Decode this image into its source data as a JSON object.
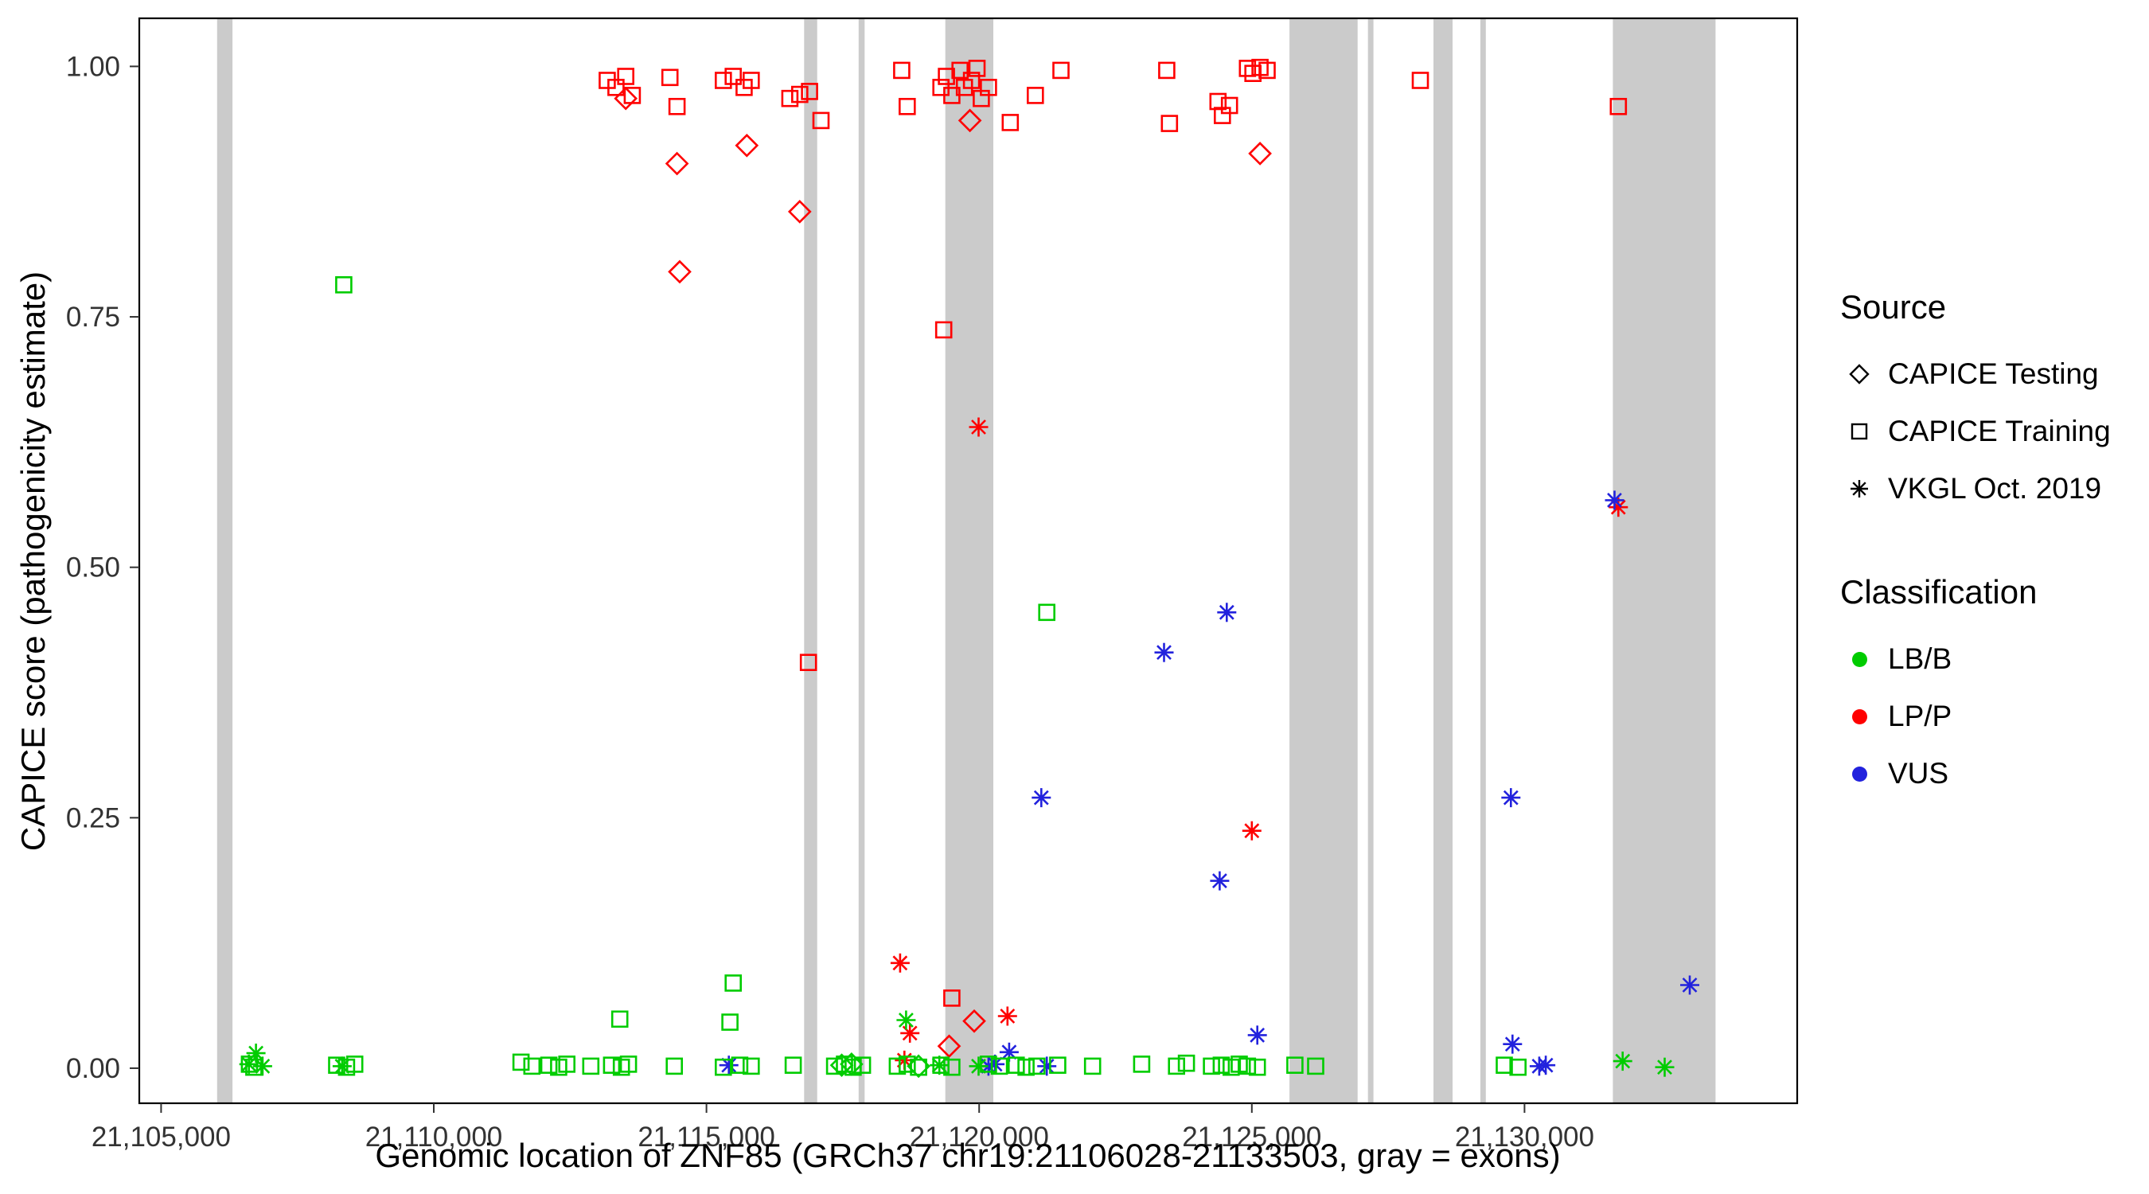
{
  "chart_data": {
    "type": "scatter",
    "title": "",
    "xlabel": "Genomic location of ZNF85 (GRCh37 chr19:21106028-21133503, gray = exons)",
    "ylabel": "CAPICE score (pathogenicity estimate)",
    "xlim": [
      21104600,
      21135000
    ],
    "ylim": [
      -0.035,
      1.048
    ],
    "x_ticks": [
      21105000,
      21110000,
      21115000,
      21120000,
      21125000,
      21130000
    ],
    "x_tick_labels": [
      "21,105,000",
      "21,110,000",
      "21,115,000",
      "21,120,000",
      "21,125,000",
      "21,130,000"
    ],
    "y_ticks": [
      0,
      0.25,
      0.5,
      0.75,
      1.0
    ],
    "y_tick_labels": [
      "0.00",
      "0.25",
      "0.50",
      "0.75",
      "1.00"
    ],
    "grid": false,
    "exon_color": "#CBCBCB",
    "panel_border_color": "#000000",
    "tick_text_color": "#333333",
    "exons": [
      [
        21106028,
        21106310
      ],
      [
        21116790,
        21117030
      ],
      [
        21117790,
        21117900
      ],
      [
        21119380,
        21120260
      ],
      [
        21125690,
        21126940
      ],
      [
        21127130,
        21127230
      ],
      [
        21128330,
        21128680
      ],
      [
        21129190,
        21129290
      ],
      [
        21131620,
        21133503
      ]
    ],
    "source_map": {
      "D": "CAPICE Testing",
      "S": "CAPICE Training",
      "A": "VKGL Oct. 2019"
    },
    "shape_by_source": {
      "D": "diamond",
      "S": "square",
      "A": "asterisk"
    },
    "class_colors": {
      "LB": "#00CC00",
      "LP": "#FF0000",
      "VUS": "#2222DD"
    },
    "points": [
      [
        21113180,
        0.986,
        "S",
        "LP"
      ],
      [
        21113340,
        0.979,
        "S",
        "LP"
      ],
      [
        21113520,
        0.99,
        "S",
        "LP"
      ],
      [
        21113640,
        0.971,
        "S",
        "LP"
      ],
      [
        21114330,
        0.989,
        "S",
        "LP"
      ],
      [
        21114460,
        0.96,
        "S",
        "LP"
      ],
      [
        21115310,
        0.986,
        "S",
        "LP"
      ],
      [
        21115490,
        0.99,
        "S",
        "LP"
      ],
      [
        21115690,
        0.979,
        "S",
        "LP"
      ],
      [
        21115820,
        0.986,
        "S",
        "LP"
      ],
      [
        21116530,
        0.968,
        "S",
        "LP"
      ],
      [
        21116710,
        0.972,
        "S",
        "LP"
      ],
      [
        21116890,
        0.975,
        "S",
        "LP"
      ],
      [
        21117100,
        0.946,
        "S",
        "LP"
      ],
      [
        21118580,
        0.996,
        "S",
        "LP"
      ],
      [
        21118680,
        0.96,
        "S",
        "LP"
      ],
      [
        21119300,
        0.979,
        "S",
        "LP"
      ],
      [
        21119400,
        0.99,
        "S",
        "LP"
      ],
      [
        21119500,
        0.971,
        "S",
        "LP"
      ],
      [
        21119650,
        0.996,
        "S",
        "LP"
      ],
      [
        21119730,
        0.979,
        "S",
        "LP"
      ],
      [
        21119860,
        0.986,
        "S",
        "LP"
      ],
      [
        21119960,
        0.998,
        "S",
        "LP"
      ],
      [
        21120040,
        0.968,
        "S",
        "LP"
      ],
      [
        21120170,
        0.979,
        "S",
        "LP"
      ],
      [
        21120570,
        0.944,
        "S",
        "LP"
      ],
      [
        21121030,
        0.971,
        "S",
        "LP"
      ],
      [
        21121500,
        0.996,
        "S",
        "LP"
      ],
      [
        21123440,
        0.996,
        "S",
        "LP"
      ],
      [
        21123490,
        0.943,
        "S",
        "LP"
      ],
      [
        21124380,
        0.965,
        "S",
        "LP"
      ],
      [
        21124460,
        0.951,
        "S",
        "LP"
      ],
      [
        21124590,
        0.961,
        "S",
        "LP"
      ],
      [
        21124920,
        0.998,
        "S",
        "LP"
      ],
      [
        21125020,
        0.993,
        "S",
        "LP"
      ],
      [
        21125150,
        0.999,
        "S",
        "LP"
      ],
      [
        21125280,
        0.996,
        "S",
        "LP"
      ],
      [
        21128090,
        0.986,
        "S",
        "LP"
      ],
      [
        21131720,
        0.96,
        "S",
        "LP"
      ],
      [
        21116870,
        0.405,
        "S",
        "LP"
      ],
      [
        21119350,
        0.737,
        "S",
        "LP"
      ],
      [
        21119500,
        0.07,
        "S",
        "LP"
      ],
      [
        21113520,
        0.968,
        "D",
        "LP"
      ],
      [
        21114460,
        0.903,
        "D",
        "LP"
      ],
      [
        21114510,
        0.795,
        "D",
        "LP"
      ],
      [
        21115740,
        0.921,
        "D",
        "LP"
      ],
      [
        21116710,
        0.855,
        "D",
        "LP"
      ],
      [
        21119830,
        0.946,
        "D",
        "LP"
      ],
      [
        21125150,
        0.913,
        "D",
        "LP"
      ],
      [
        21119910,
        0.047,
        "D",
        "LP"
      ],
      [
        21119450,
        0.022,
        "D",
        "LP"
      ],
      [
        21119990,
        0.64,
        "A",
        "LP"
      ],
      [
        21125000,
        0.237,
        "A",
        "LP"
      ],
      [
        21118550,
        0.105,
        "A",
        "LP"
      ],
      [
        21118730,
        0.035,
        "A",
        "LP"
      ],
      [
        21118630,
        0.008,
        "A",
        "LP"
      ],
      [
        21120520,
        0.052,
        "A",
        "LP"
      ],
      [
        21131720,
        0.56,
        "A",
        "LP"
      ],
      [
        21123390,
        0.415,
        "A",
        "VUS"
      ],
      [
        21124540,
        0.455,
        "A",
        "VUS"
      ],
      [
        21121140,
        0.27,
        "A",
        "VUS"
      ],
      [
        21124410,
        0.187,
        "A",
        "VUS"
      ],
      [
        21129750,
        0.27,
        "A",
        "VUS"
      ],
      [
        21131650,
        0.567,
        "A",
        "VUS"
      ],
      [
        21133030,
        0.083,
        "A",
        "VUS"
      ],
      [
        21125100,
        0.033,
        "A",
        "VUS"
      ],
      [
        21120550,
        0.016,
        "A",
        "VUS"
      ],
      [
        21129780,
        0.024,
        "A",
        "VUS"
      ],
      [
        21115410,
        0.003,
        "A",
        "VUS"
      ],
      [
        21120170,
        0.002,
        "A",
        "VUS"
      ],
      [
        21120290,
        0.004,
        "A",
        "VUS"
      ],
      [
        21121240,
        0.002,
        "A",
        "VUS"
      ],
      [
        21130270,
        0.002,
        "A",
        "VUS"
      ],
      [
        21130390,
        0.003,
        "A",
        "VUS"
      ],
      [
        21108350,
        0.782,
        "S",
        "LB"
      ],
      [
        21115490,
        0.085,
        "S",
        "LB"
      ],
      [
        21115430,
        0.046,
        "S",
        "LB"
      ],
      [
        21113410,
        0.049,
        "S",
        "LB"
      ],
      [
        21121240,
        0.455,
        "S",
        "LB"
      ],
      [
        21106620,
        0.004,
        "S",
        "LB"
      ],
      [
        21106700,
        0.001,
        "S",
        "LB"
      ],
      [
        21108220,
        0.003,
        "S",
        "LB"
      ],
      [
        21108400,
        0.001,
        "S",
        "LB"
      ],
      [
        21108550,
        0.004,
        "S",
        "LB"
      ],
      [
        21111600,
        0.006,
        "S",
        "LB"
      ],
      [
        21111800,
        0.002,
        "S",
        "LB"
      ],
      [
        21112110,
        0.003,
        "S",
        "LB"
      ],
      [
        21112290,
        0.001,
        "S",
        "LB"
      ],
      [
        21112440,
        0.004,
        "S",
        "LB"
      ],
      [
        21112880,
        0.002,
        "S",
        "LB"
      ],
      [
        21113260,
        0.003,
        "S",
        "LB"
      ],
      [
        21113440,
        0.001,
        "S",
        "LB"
      ],
      [
        21113570,
        0.004,
        "S",
        "LB"
      ],
      [
        21114410,
        0.002,
        "S",
        "LB"
      ],
      [
        21115310,
        0.001,
        "S",
        "LB"
      ],
      [
        21115610,
        0.003,
        "S",
        "LB"
      ],
      [
        21115820,
        0.002,
        "S",
        "LB"
      ],
      [
        21116590,
        0.003,
        "S",
        "LB"
      ],
      [
        21117350,
        0.002,
        "S",
        "LB"
      ],
      [
        21117530,
        0.004,
        "S",
        "LB"
      ],
      [
        21117690,
        0.001,
        "S",
        "LB"
      ],
      [
        21117860,
        0.003,
        "S",
        "LB"
      ],
      [
        21118500,
        0.002,
        "S",
        "LB"
      ],
      [
        21118680,
        0.004,
        "S",
        "LB"
      ],
      [
        21118890,
        0.001,
        "S",
        "LB"
      ],
      [
        21119300,
        0.003,
        "S",
        "LB"
      ],
      [
        21119500,
        0.001,
        "S",
        "LB"
      ],
      [
        21120170,
        0.004,
        "S",
        "LB"
      ],
      [
        21120370,
        0.002,
        "S",
        "LB"
      ],
      [
        21120680,
        0.003,
        "S",
        "LB"
      ],
      [
        21120860,
        0.001,
        "S",
        "LB"
      ],
      [
        21121060,
        0.002,
        "S",
        "LB"
      ],
      [
        21121440,
        0.003,
        "S",
        "LB"
      ],
      [
        21122080,
        0.002,
        "S",
        "LB"
      ],
      [
        21122980,
        0.004,
        "S",
        "LB"
      ],
      [
        21123620,
        0.002,
        "S",
        "LB"
      ],
      [
        21123800,
        0.005,
        "S",
        "LB"
      ],
      [
        21124260,
        0.002,
        "S",
        "LB"
      ],
      [
        21124440,
        0.003,
        "S",
        "LB"
      ],
      [
        21124620,
        0.001,
        "S",
        "LB"
      ],
      [
        21124770,
        0.004,
        "S",
        "LB"
      ],
      [
        21124920,
        0.002,
        "S",
        "LB"
      ],
      [
        21125100,
        0.001,
        "S",
        "LB"
      ],
      [
        21125790,
        0.003,
        "S",
        "LB"
      ],
      [
        21126170,
        0.002,
        "S",
        "LB"
      ],
      [
        21129630,
        0.003,
        "S",
        "LB"
      ],
      [
        21129880,
        0.001,
        "S",
        "LB"
      ],
      [
        21106740,
        0.015,
        "A",
        "LB"
      ],
      [
        21106610,
        0.004,
        "A",
        "LB"
      ],
      [
        21106860,
        0.002,
        "A",
        "LB"
      ],
      [
        21108320,
        0.002,
        "A",
        "LB"
      ],
      [
        21118660,
        0.048,
        "A",
        "LB"
      ],
      [
        21119270,
        0.003,
        "A",
        "LB"
      ],
      [
        21119990,
        0.002,
        "A",
        "LB"
      ],
      [
        21131800,
        0.007,
        "A",
        "LB"
      ],
      [
        21132570,
        0.001,
        "A",
        "LB"
      ],
      [
        21117480,
        0.003,
        "D",
        "LB"
      ],
      [
        21117660,
        0.004,
        "D",
        "LB"
      ],
      [
        21118890,
        0.002,
        "D",
        "LB"
      ]
    ]
  },
  "legend": {
    "source": {
      "title": "Source",
      "items": [
        {
          "label": "CAPICE Testing",
          "shape": "diamond"
        },
        {
          "label": "CAPICE Training",
          "shape": "square"
        },
        {
          "label": "VKGL Oct. 2019",
          "shape": "asterisk"
        }
      ]
    },
    "classification": {
      "title": "Classification",
      "items": [
        {
          "label": "LB/B",
          "class_key": "LB"
        },
        {
          "label": "LP/P",
          "class_key": "LP"
        },
        {
          "label": "VUS",
          "class_key": "VUS"
        }
      ]
    }
  }
}
